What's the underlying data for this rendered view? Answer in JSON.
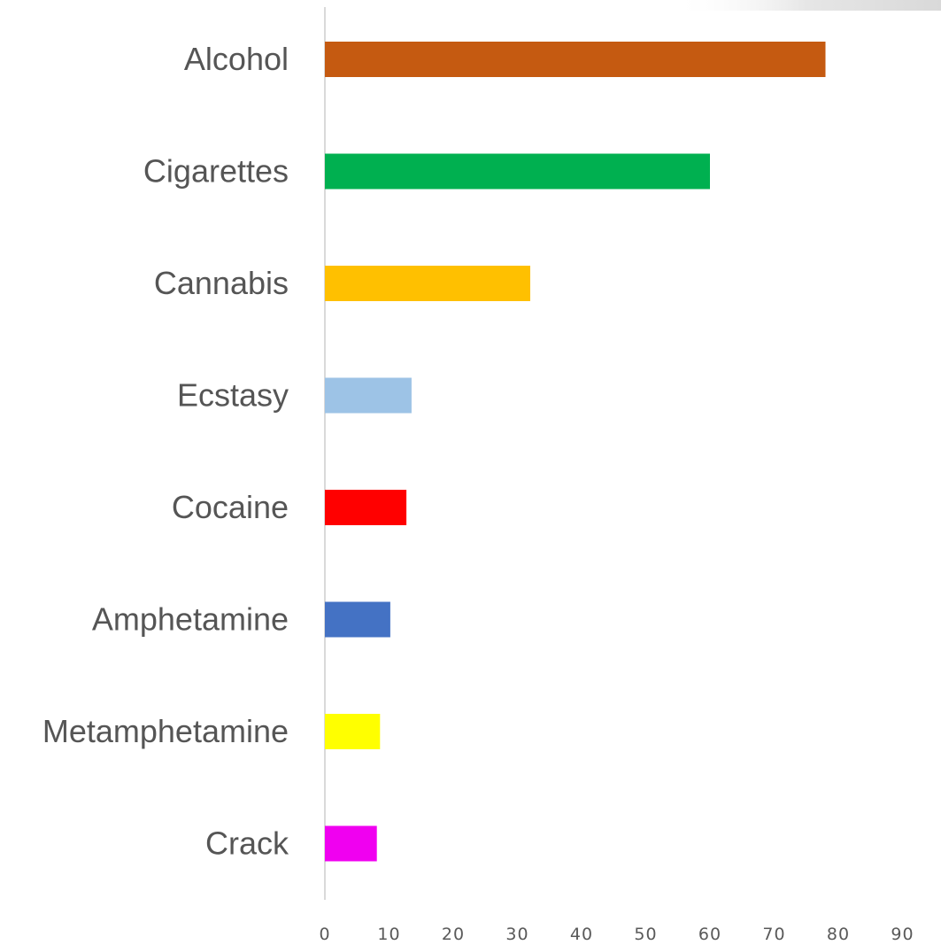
{
  "chart_data": {
    "type": "bar",
    "orientation": "horizontal",
    "categories": [
      "Alcohol",
      "Cigarettes",
      "Cannabis",
      "Ecstasy",
      "Cocaine",
      "Amphetamine",
      "Metamphetamine",
      "Crack"
    ],
    "values": [
      78,
      60,
      32,
      13.5,
      12.7,
      10.2,
      8.6,
      8.1
    ],
    "colors": [
      "#c55a11",
      "#00b050",
      "#ffc000",
      "#9dc3e6",
      "#ff0000",
      "#4472c4",
      "#ffff00",
      "#f000f0"
    ],
    "title": "",
    "xlabel": "",
    "ylabel": "",
    "xlim": [
      0,
      90
    ],
    "xticks": [
      "0",
      "10",
      "20",
      "30",
      "40",
      "50",
      "60",
      "70",
      "80",
      "90"
    ],
    "grid": false,
    "legend": "none"
  }
}
